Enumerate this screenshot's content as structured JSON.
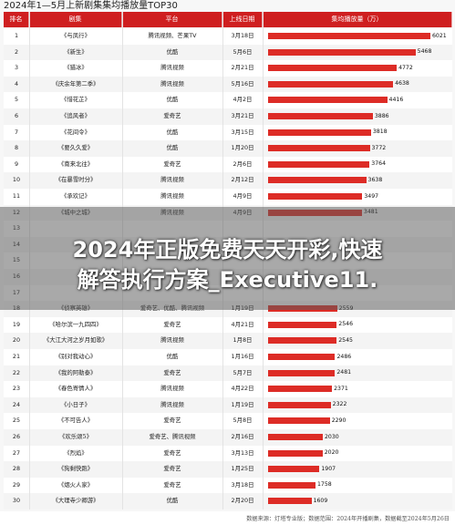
{
  "title": "2024年1—5月上新剧集集均播放量TOP30",
  "headers": {
    "rank": "排名",
    "drama": "剧集",
    "platform": "平台",
    "date": "上线日期",
    "plays": "集均播放量（万）"
  },
  "rows": [
    {
      "rank": "1",
      "drama": "《与凤行》",
      "platform": "腾讯视频、芒果TV",
      "date": "3月18日",
      "plays": "6021"
    },
    {
      "rank": "2",
      "drama": "《新生》",
      "platform": "优酷",
      "date": "5月6日",
      "plays": "5468"
    },
    {
      "rank": "3",
      "drama": "《猎冰》",
      "platform": "腾讯视频",
      "date": "2月21日",
      "plays": "4772"
    },
    {
      "rank": "4",
      "drama": "《庆余年第二季》",
      "platform": "腾讯视频",
      "date": "5月16日",
      "plays": "4638"
    },
    {
      "rank": "5",
      "drama": "《惜花芷》",
      "platform": "优酷",
      "date": "4月2日",
      "plays": "4416"
    },
    {
      "rank": "6",
      "drama": "《追风者》",
      "platform": "爱奇艺",
      "date": "3月21日",
      "plays": "3886"
    },
    {
      "rank": "7",
      "drama": "《花间令》",
      "platform": "优酷",
      "date": "3月15日",
      "plays": "3818"
    },
    {
      "rank": "8",
      "drama": "《要久久爱》",
      "platform": "优酷",
      "date": "1月20日",
      "plays": "3772"
    },
    {
      "rank": "9",
      "drama": "《南来北往》",
      "platform": "爱奇艺",
      "date": "2月6日",
      "plays": "3764"
    },
    {
      "rank": "10",
      "drama": "《在暴雪时分》",
      "platform": "腾讯视频",
      "date": "2月12日",
      "plays": "3638"
    },
    {
      "rank": "11",
      "drama": "《承欢记》",
      "platform": "腾讯视频",
      "date": "4月9日",
      "plays": "3497"
    },
    {
      "rank": "12",
      "drama": "《城中之城》",
      "platform": "腾讯视频",
      "date": "4月9日",
      "plays": "3481"
    },
    {
      "rank": "13",
      "drama": "",
      "platform": "",
      "date": "",
      "plays": ""
    },
    {
      "rank": "14",
      "drama": "",
      "platform": "",
      "date": "",
      "plays": ""
    },
    {
      "rank": "15",
      "drama": "",
      "platform": "",
      "date": "",
      "plays": ""
    },
    {
      "rank": "16",
      "drama": "",
      "platform": "",
      "date": "",
      "plays": ""
    },
    {
      "rank": "17",
      "drama": "",
      "platform": "",
      "date": "",
      "plays": ""
    },
    {
      "rank": "18",
      "drama": "《侦察英雄》",
      "platform": "爱奇艺、优酷、腾讯视频",
      "date": "1月19日",
      "plays": "2559"
    },
    {
      "rank": "19",
      "drama": "《哈尔滨一九四四》",
      "platform": "爱奇艺",
      "date": "4月21日",
      "plays": "2546"
    },
    {
      "rank": "20",
      "drama": "《大江大河之岁月如歌》",
      "platform": "腾讯视频",
      "date": "1月8日",
      "plays": "2545"
    },
    {
      "rank": "21",
      "drama": "《别对我动心》",
      "platform": "优酷",
      "date": "1月16日",
      "plays": "2486"
    },
    {
      "rank": "22",
      "drama": "《我的阿勒泰》",
      "platform": "爱奇艺",
      "date": "5月7日",
      "plays": "2481"
    },
    {
      "rank": "23",
      "drama": "《春色寄情人》",
      "platform": "腾讯视频",
      "date": "4月22日",
      "plays": "2371"
    },
    {
      "rank": "24",
      "drama": "《小日子》",
      "platform": "腾讯视频",
      "date": "1月19日",
      "plays": "2322"
    },
    {
      "rank": "25",
      "drama": "《不可告人》",
      "platform": "爱奇艺",
      "date": "5月8日",
      "plays": "2290"
    },
    {
      "rank": "26",
      "drama": "《欢乐颂5》",
      "platform": "爱奇艺、腾讯视频",
      "date": "2月16日",
      "plays": "2030"
    },
    {
      "rank": "27",
      "drama": "《烈焰》",
      "platform": "爱奇艺",
      "date": "3月13日",
      "plays": "2020"
    },
    {
      "rank": "28",
      "drama": "《狗剩快跑》",
      "platform": "爱奇艺",
      "date": "1月25日",
      "plays": "1907"
    },
    {
      "rank": "29",
      "drama": "《烟火人家》",
      "platform": "爱奇艺",
      "date": "3月18日",
      "plays": "1758"
    },
    {
      "rank": "30",
      "drama": "《大理寺少卿游》",
      "platform": "优酷",
      "date": "2月20日",
      "plays": "1609"
    }
  ],
  "footer": "数据来源：灯塔专业版；数据范围：2024年开播剧集，数据截至2024年5月26日",
  "overlay": {
    "line1": "2024年正版免费天天开彩,快速",
    "line2": "解答执行方案_Executive11."
  },
  "colors": {
    "header": "#cf1f20",
    "bar": "#dd2c26"
  },
  "chart_data": {
    "type": "bar",
    "title": "2024年1—5月上新剧集集均播放量TOP30",
    "ylabel": "集均播放量（万）",
    "categories": [
      "《与凤行》",
      "《新生》",
      "《猎冰》",
      "《庆余年第二季》",
      "《惜花芷》",
      "《追风者》",
      "《花间令》",
      "《要久久爱》",
      "《南来北往》",
      "《在暴雪时分》",
      "《承欢记》",
      "《城中之城》",
      "",
      "",
      "",
      "",
      "",
      "《侦察英雄》",
      "《哈尔滨一九四四》",
      "《大江大河之岁月如歌》",
      "《别对我动心》",
      "《我的阿勒泰》",
      "《春色寄情人》",
      "《小日子》",
      "《不可告人》",
      "《欢乐颂5》",
      "《烈焰》",
      "《狗剩快跑》",
      "《烟火人家》",
      "《大理寺少卿游》"
    ],
    "values": [
      6021,
      5468,
      4772,
      4638,
      4416,
      3886,
      3818,
      3772,
      3764,
      3638,
      3497,
      3481,
      null,
      null,
      null,
      null,
      null,
      2559,
      2546,
      2545,
      2486,
      2481,
      2371,
      2322,
      2290,
      2030,
      2020,
      1907,
      1758,
      1609
    ],
    "ylim": [
      0,
      6021
    ]
  }
}
